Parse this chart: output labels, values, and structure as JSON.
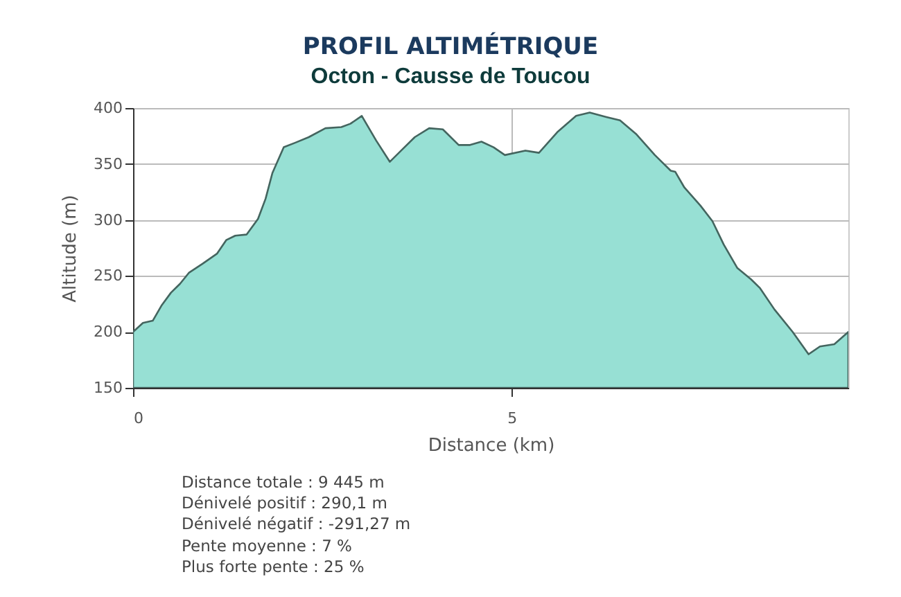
{
  "chart_data": {
    "type": "area",
    "title": "PROFIL ALTIMÉTRIQUE",
    "subtitle": "Octon - Causse de Toucou",
    "xlabel": "Distance (km)",
    "ylabel": "Altitude (m)",
    "x": [
      0,
      0.13,
      0.26,
      0.38,
      0.5,
      0.62,
      0.74,
      0.92,
      1.11,
      1.23,
      1.35,
      1.5,
      1.65,
      1.75,
      1.84,
      1.99,
      2.14,
      2.32,
      2.54,
      2.75,
      2.87,
      3.02,
      3.21,
      3.39,
      3.54,
      3.72,
      3.91,
      4.09,
      4.3,
      4.45,
      4.6,
      4.76,
      4.91,
      5.18,
      5.36,
      5.61,
      5.85,
      6.03,
      6.25,
      6.43,
      6.64,
      6.89,
      7.1,
      7.16,
      7.28,
      7.49,
      7.65,
      7.8,
      7.98,
      8.16,
      8.28,
      8.47,
      8.71,
      8.92,
      9.07,
      9.26,
      9.445
    ],
    "series": [
      {
        "color": "#97e0d4",
        "values": [
          200,
          208,
          210,
          224,
          235,
          243,
          253,
          261,
          270,
          282,
          286,
          287,
          301,
          319,
          342,
          365,
          369,
          374,
          382,
          383,
          386,
          393,
          371,
          352,
          362,
          374,
          382,
          381,
          367,
          367,
          370,
          365,
          358,
          362,
          360,
          379,
          393,
          396,
          392,
          389,
          377,
          358,
          344,
          343,
          329,
          313,
          299,
          278,
          257,
          247,
          239,
          220,
          200,
          180,
          187,
          189,
          200
        ]
      }
    ],
    "xlim": [
      0,
      9.445
    ],
    "xticks": [
      0,
      5
    ],
    "ylim": [
      150,
      400
    ],
    "yticks": [
      150,
      200,
      250,
      300,
      350,
      400
    ],
    "grid": true,
    "annotations": [
      "Distance totale : 9 445 m",
      "Dénivelé positif : 290,1 m",
      "Dénivelé négatif : -291,27 m",
      "Pente moyenne : 7 %",
      "Plus forte pente : 25 %"
    ]
  }
}
